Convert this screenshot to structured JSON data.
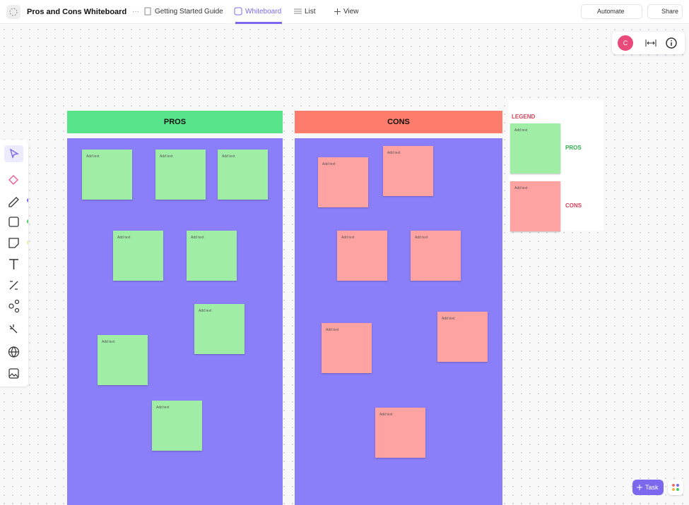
{
  "header": {
    "title": "Pros and Cons Whiteboard",
    "tabs": [
      "Getting Started Guide",
      "Whiteboard",
      "List",
      "View"
    ],
    "automate": "Automate",
    "share": "Share"
  },
  "avatar": "C",
  "board": {
    "pros": {
      "title": "PROS",
      "notes": [
        "Add text",
        "Add text",
        "Add text",
        "Add text",
        "Add text",
        "Add text",
        "Add text",
        "Add text"
      ]
    },
    "cons": {
      "title": "CONS",
      "notes": [
        "Add text",
        "Add text",
        "Add text",
        "Add text",
        "Add text",
        "Add text",
        "Add text"
      ]
    }
  },
  "legend": {
    "title": "LEGEND",
    "items": [
      {
        "label": "PROS",
        "note": "Add text"
      },
      {
        "label": "CONS",
        "note": "Add text"
      }
    ]
  },
  "task_button": "Task"
}
